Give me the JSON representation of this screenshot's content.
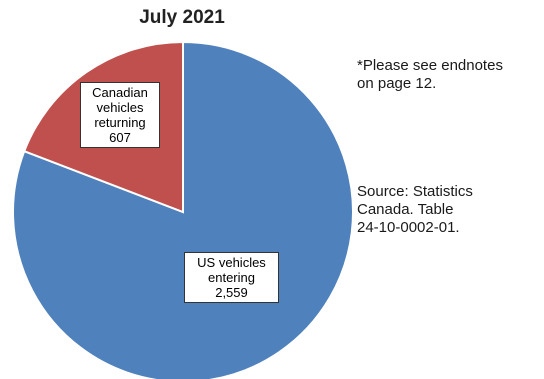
{
  "title": "July 2021",
  "chart_data": {
    "type": "pie",
    "title": "July 2021",
    "slices": [
      {
        "label_lines": [
          "US vehicles",
          "entering",
          "2,559"
        ],
        "category": "US vehicles entering",
        "value": 2559,
        "color": "#4f81bd"
      },
      {
        "label_lines": [
          "Canadian",
          "vehicles",
          "returning",
          "607"
        ],
        "category": "Canadian vehicles returning",
        "value": 607,
        "color": "#c0504d"
      }
    ],
    "start_angle_deg": 0,
    "direction": "clockwise"
  },
  "notes": {
    "endnote_lines": [
      "*Please see endnotes",
      "on page 12."
    ],
    "source_lines": [
      "Source: Statistics",
      "Canada. Table",
      "24-10-0002-01."
    ]
  }
}
